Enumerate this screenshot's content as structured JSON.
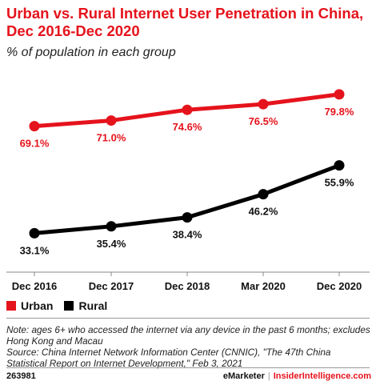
{
  "title": "Urban vs. Rural Internet User Penetration in China, Dec 2016-Dec 2020",
  "subtitle": "% of population in each group",
  "colors": {
    "urban": "#e5131c",
    "rural": "#000000",
    "accent": "#e5131c"
  },
  "chart_data": {
    "type": "line",
    "categories": [
      "Dec 2016",
      "Dec 2017",
      "Dec 2018",
      "Mar 2020",
      "Dec 2020"
    ],
    "series": [
      {
        "name": "Urban",
        "values": [
          69.1,
          71.0,
          74.6,
          76.5,
          79.8
        ],
        "labels": [
          "69.1%",
          "71.0%",
          "74.6%",
          "76.5%",
          "79.8%"
        ],
        "color": "#e5131c"
      },
      {
        "name": "Rural",
        "values": [
          33.1,
          35.4,
          38.4,
          46.2,
          55.9
        ],
        "labels": [
          "33.1%",
          "35.4%",
          "38.4%",
          "46.2%",
          "55.9%"
        ],
        "color": "#000000"
      }
    ],
    "ylim": [
      20,
      90
    ],
    "grid": false,
    "legend": "bottom-left"
  },
  "legend": {
    "urban": "Urban",
    "rural": "Rural"
  },
  "note": "Note: ages 6+ who accessed the internet via any device in the past 6 months; excludes Hong Kong and Macau",
  "source": "Source: China Internet Network Information Center (CNNIC), \"The 47th China Statistical Report on Internet Development,\" Feb 3, 2021",
  "footer": {
    "id": "263981",
    "brand": "eMarketer",
    "brand2": "InsiderIntelligence.com"
  }
}
